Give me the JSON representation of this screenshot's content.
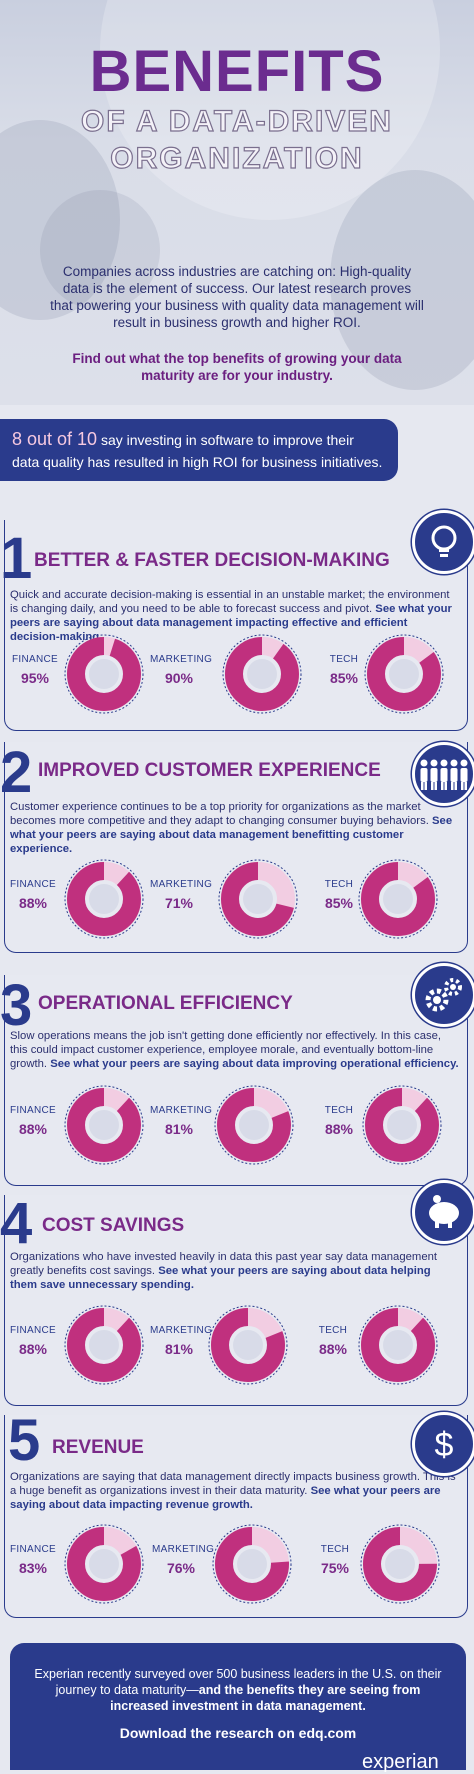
{
  "title": {
    "line1": "BENEFITS",
    "line2": "OF A DATA-DRIVEN",
    "line3": "ORGANIZATION"
  },
  "intro": {
    "paragraph": "Companies across industries are catching on: High-quality data is the element of success. Our latest research proves that powering your business with quality data management will result in business growth and higher ROI.",
    "cta": "Find out what the top benefits of growing your data maturity are for your industry."
  },
  "stat": {
    "highlight": "8 out of 10",
    "rest1": " say investing in software to improve their",
    "rest2": "data quality has resulted in high ROI for business initiatives."
  },
  "colors": {
    "navy": "#2a3b8c",
    "magenta": "#c0307e",
    "pink_light": "#f2cde2",
    "purple": "#7a2a88"
  },
  "sections": [
    {
      "number": "1",
      "heading": "BETTER & FASTER DECISION-MAKING",
      "icon": "lightbulb-icon",
      "text": "Quick and accurate decision-making is essential in an unstable market; the environment is changing daily, and you need to be able to forecast success and pivot. ",
      "bold": "See what your peers are saying about data management impacting effective and efficient decision-making.",
      "stats": [
        {
          "label": "FINANCE",
          "value": "95%",
          "pct": 95
        },
        {
          "label": "MARKETING",
          "value": "90%",
          "pct": 90
        },
        {
          "label": "TECH",
          "value": "85%",
          "pct": 85
        }
      ]
    },
    {
      "number": "2",
      "heading": "IMPROVED CUSTOMER EXPERIENCE",
      "icon": "people-icon",
      "text": "Customer experience continues to be a top priority for organizations as the market becomes more competitive and they adapt to changing consumer buying behaviors. ",
      "bold": "See what your peers are saying about data management benefitting customer experience.",
      "stats": [
        {
          "label": "FINANCE",
          "value": "88%",
          "pct": 88
        },
        {
          "label": "MARKETING",
          "value": "71%",
          "pct": 71
        },
        {
          "label": "TECH",
          "value": "85%",
          "pct": 85
        }
      ]
    },
    {
      "number": "3",
      "heading": "OPERATIONAL EFFICIENCY",
      "icon": "gears-icon",
      "text": "Slow operations means the job isn't getting done efficiently nor effectively. In this case, this could impact customer experience, employee morale, and eventually bottom-line growth. ",
      "bold": "See what your peers are saying about data improving operational efficiency.",
      "stats": [
        {
          "label": "FINANCE",
          "value": "88%",
          "pct": 88
        },
        {
          "label": "MARKETING",
          "value": "81%",
          "pct": 81
        },
        {
          "label": "TECH",
          "value": "88%",
          "pct": 88
        }
      ]
    },
    {
      "number": "4",
      "heading": "COST SAVINGS",
      "icon": "piggy-bank-icon",
      "text": "Organizations who have invested heavily in data this past year say data management greatly benefits cost savings. ",
      "bold": "See what your peers are saying about data helping them save unnecessary spending.",
      "stats": [
        {
          "label": "FINANCE",
          "value": "88%",
          "pct": 88
        },
        {
          "label": "MARKETING",
          "value": "81%",
          "pct": 81
        },
        {
          "label": "TECH",
          "value": "88%",
          "pct": 88
        }
      ]
    },
    {
      "number": "5",
      "heading": "REVENUE",
      "icon": "dollar-icon",
      "text": "Organizations are saying that data management directly impacts business growth. This is a huge benefit as organizations invest in their data maturity. ",
      "bold": "See what your peers are saying about data impacting revenue growth.",
      "stats": [
        {
          "label": "FINANCE",
          "value": "83%",
          "pct": 83
        },
        {
          "label": "MARKETING",
          "value": "76%",
          "pct": 76
        },
        {
          "label": "TECH",
          "value": "75%",
          "pct": 75
        }
      ]
    }
  ],
  "footer": {
    "text": "Experian recently surveyed over 500 business leaders in the U.S. on their journey to data maturity—",
    "bold": "and the benefits they are seeing from increased investment in data management.",
    "download": "Download the research on edq.com",
    "logo": "experian"
  }
}
